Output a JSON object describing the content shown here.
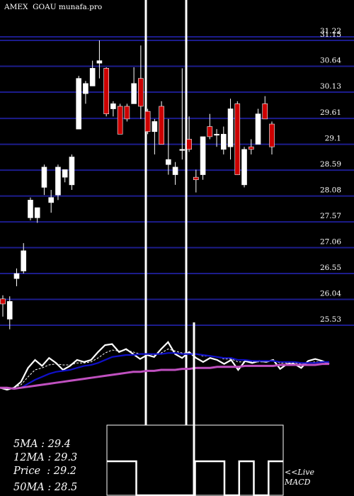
{
  "header": {
    "symbol": "AMEX  GOAU",
    "site": "munafa.pro"
  },
  "colors": {
    "background": "#000000",
    "gridline": "#1c1c8c",
    "up_candle": "#ffffff",
    "down_candle": "#cc0000",
    "price_line": "#ffffff",
    "ma_fast": "#ffffff",
    "ma_mid": "#1010c8",
    "ma_slow": "#c050c0",
    "macd": "#ffffff"
  },
  "chart_data": [
    {
      "type": "candlestick",
      "title": "AMEX  GOAU munafa.pro",
      "ylim": [
        25.3,
        31.45
      ],
      "y_ticks": [
        31.22,
        31.15,
        30.64,
        30.13,
        29.61,
        29.1,
        28.59,
        28.08,
        27.57,
        27.06,
        26.55,
        26.04,
        25.53
      ],
      "y_tick_labels": [
        "31.22",
        "31.15",
        "30.64",
        "30.13",
        "29.61",
        "29.1",
        "28.59",
        "28.08",
        "27.57",
        "27.06",
        "26.55",
        "26.04",
        "25.53"
      ],
      "grid": true,
      "candles": [
        {
          "o": 26.05,
          "h": 26.12,
          "l": 25.7,
          "c": 25.95
        },
        {
          "o": 25.65,
          "h": 26.1,
          "l": 25.45,
          "c": 26.0
        },
        {
          "o": 26.45,
          "h": 26.65,
          "l": 26.3,
          "c": 26.55
        },
        {
          "o": 26.6,
          "h": 27.15,
          "l": 26.55,
          "c": 27.0
        },
        {
          "o": 27.65,
          "h": 28.05,
          "l": 27.6,
          "c": 28.0
        },
        {
          "o": 27.65,
          "h": 27.85,
          "l": 27.55,
          "c": 27.85
        },
        {
          "o": 28.25,
          "h": 28.7,
          "l": 28.1,
          "c": 28.65
        },
        {
          "o": 27.95,
          "h": 28.2,
          "l": 27.75,
          "c": 28.05
        },
        {
          "o": 28.1,
          "h": 28.7,
          "l": 28.0,
          "c": 28.65
        },
        {
          "o": 28.45,
          "h": 28.6,
          "l": 28.35,
          "c": 28.6
        },
        {
          "o": 28.3,
          "h": 28.9,
          "l": 28.2,
          "c": 28.85
        },
        {
          "o": 29.4,
          "h": 30.45,
          "l": 29.4,
          "c": 30.4
        },
        {
          "o": 30.1,
          "h": 30.35,
          "l": 29.9,
          "c": 30.3
        },
        {
          "o": 30.25,
          "h": 30.75,
          "l": 30.25,
          "c": 30.6
        },
        {
          "o": 30.7,
          "h": 31.15,
          "l": 30.4,
          "c": 30.75
        },
        {
          "o": 30.6,
          "h": 30.62,
          "l": 29.65,
          "c": 29.7
        },
        {
          "o": 29.8,
          "h": 29.95,
          "l": 29.65,
          "c": 29.9
        },
        {
          "o": 29.85,
          "h": 29.9,
          "l": 29.3,
          "c": 29.3
        },
        {
          "o": 29.85,
          "h": 29.9,
          "l": 29.55,
          "c": 29.6
        },
        {
          "o": 29.9,
          "h": 30.62,
          "l": 29.9,
          "c": 30.3
        },
        {
          "o": 30.4,
          "h": 31.05,
          "l": 29.6,
          "c": 29.85
        },
        {
          "o": 29.75,
          "h": 29.8,
          "l": 29.3,
          "c": 29.35
        },
        {
          "o": 29.35,
          "h": 29.6,
          "l": 28.9,
          "c": 29.55
        },
        {
          "o": 29.85,
          "h": 29.95,
          "l": 29.1,
          "c": 29.1
        },
        {
          "o": 28.7,
          "h": 29.6,
          "l": 28.5,
          "c": 28.8
        },
        {
          "o": 28.5,
          "h": 28.75,
          "l": 28.3,
          "c": 28.65
        },
        {
          "o": 29.0,
          "h": 30.6,
          "l": 28.8,
          "c": 29.0
        },
        {
          "o": 29.2,
          "h": 29.65,
          "l": 28.95,
          "c": 29.0
        },
        {
          "o": 28.45,
          "h": 28.6,
          "l": 28.15,
          "c": 28.4
        },
        {
          "o": 28.5,
          "h": 29.25,
          "l": 28.4,
          "c": 29.25
        },
        {
          "o": 29.45,
          "h": 29.7,
          "l": 29.2,
          "c": 29.25
        },
        {
          "o": 29.3,
          "h": 29.4,
          "l": 29.05,
          "c": 29.3
        },
        {
          "o": 29.0,
          "h": 29.45,
          "l": 28.9,
          "c": 29.3
        },
        {
          "o": 29.05,
          "h": 30.0,
          "l": 28.8,
          "c": 29.8
        },
        {
          "o": 29.9,
          "h": 29.95,
          "l": 28.5,
          "c": 28.5
        },
        {
          "o": 28.3,
          "h": 29.05,
          "l": 28.25,
          "c": 29.0
        },
        {
          "o": 29.05,
          "h": 29.2,
          "l": 28.9,
          "c": 29.0
        },
        {
          "o": 29.1,
          "h": 29.8,
          "l": 29.1,
          "c": 29.7
        },
        {
          "o": 29.9,
          "h": 30.05,
          "l": 29.6,
          "c": 29.6
        },
        {
          "o": 29.5,
          "h": 29.55,
          "l": 28.9,
          "c": 29.05
        }
      ]
    },
    {
      "type": "line",
      "title": "",
      "ylim": [
        0,
        100
      ],
      "grid": false,
      "series": [
        {
          "name": "",
          "values": [
            52,
            50,
            52,
            58,
            72,
            80,
            74,
            82,
            77,
            70,
            74,
            80,
            78,
            80,
            88,
            95,
            96,
            88,
            91,
            86,
            81,
            85,
            83,
            91,
            98,
            86,
            82,
            88,
            82,
            78,
            82,
            80,
            76,
            80,
            70,
            79,
            77,
            79,
            78,
            80,
            71,
            76,
            76,
            72,
            79,
            81,
            79,
            76
          ]
        },
        {
          "name": "",
          "values": [
            52,
            51,
            52,
            55,
            63,
            70,
            72,
            75,
            76,
            75,
            75,
            77,
            77,
            78,
            82,
            87,
            90,
            89,
            90,
            88,
            86,
            86,
            85,
            87,
            91,
            89,
            87,
            87,
            86,
            84,
            84,
            83,
            81,
            81,
            78,
            78,
            78,
            78,
            78,
            79,
            77,
            77,
            77,
            76,
            77,
            78,
            78,
            78
          ]
        },
        {
          "name": "",
          "values": [
            52,
            52,
            51,
            52,
            56,
            60,
            63,
            66,
            68,
            69,
            70,
            72,
            74,
            75,
            77,
            80,
            83,
            84,
            85,
            85,
            86,
            86,
            86,
            86,
            87,
            87,
            86,
            86,
            86,
            85,
            84,
            83,
            82,
            82,
            80,
            80,
            79,
            79,
            79,
            79,
            78,
            78,
            78,
            77,
            77,
            77,
            78,
            78
          ]
        },
        {
          "name": "",
          "values": [
            52,
            52,
            51,
            52,
            53,
            54,
            55,
            56,
            57,
            58,
            59,
            60,
            61,
            62,
            63,
            64,
            65,
            66,
            67,
            68,
            68,
            69,
            69,
            70,
            70,
            70,
            71,
            71,
            72,
            72,
            72,
            73,
            73,
            73,
            73,
            74,
            74,
            74,
            74,
            74,
            75,
            75,
            75,
            75,
            75,
            75,
            76,
            76
          ]
        }
      ],
      "annotations": [
        "5MA : 29.4",
        "12MA : 29.3",
        "Price   : 29.2",
        "50MA : 28.5"
      ]
    },
    {
      "type": "step",
      "title": "",
      "label": "<<Live MACD",
      "values": [
        1,
        1,
        0,
        0,
        0,
        0,
        1,
        1,
        0,
        1,
        0,
        1
      ]
    }
  ],
  "ma_legend": [
    {
      "label": "5MA",
      "value": "29.4"
    },
    {
      "label": "12MA",
      "value": "29.3"
    },
    {
      "label": "Price  ",
      "value": "29.2"
    },
    {
      "label": "50MA",
      "value": "28.5"
    }
  ],
  "macd_label": {
    "line1": "<<Live",
    "line2": "MACD"
  }
}
